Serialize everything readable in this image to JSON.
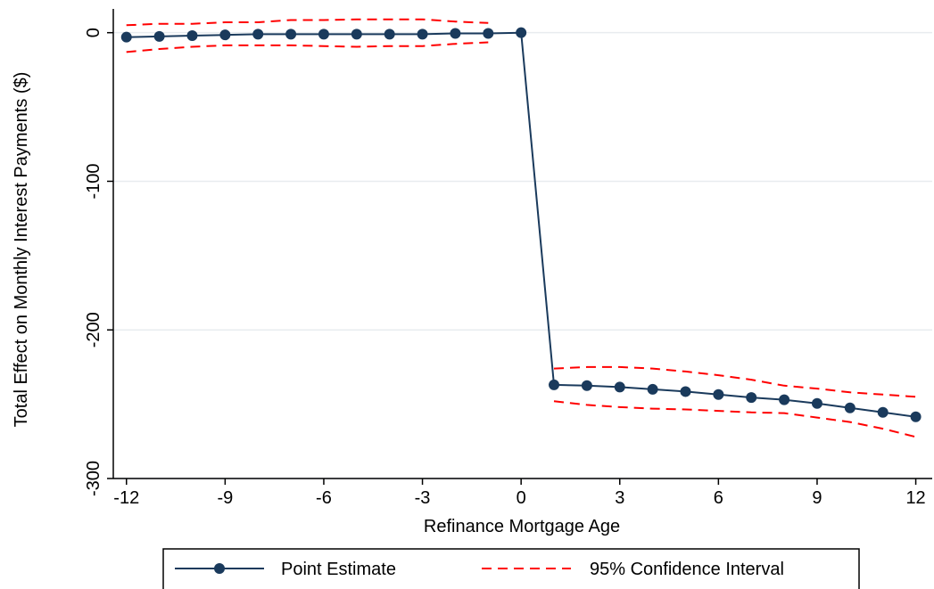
{
  "chart_data": {
    "type": "line",
    "xlabel": "Refinance Mortgage Age",
    "ylabel": "Total Effect on Monthly Interest Payments ($)",
    "xlim": [
      -12.4,
      12.5
    ],
    "ylim": [
      -300,
      16
    ],
    "x_ticks": [
      -12,
      -9,
      -6,
      -3,
      0,
      3,
      6,
      9,
      12
    ],
    "y_ticks": [
      0,
      -100,
      -200,
      -300
    ],
    "grid": "horizontal",
    "legend_position": "bottom",
    "series": [
      {
        "name": "Point Estimate",
        "style": "solid-markers",
        "color": "#1a3a5c",
        "segments": [
          {
            "x": [
              -12,
              -11,
              -10,
              -9,
              -8,
              -7,
              -6,
              -5,
              -4,
              -3,
              -2,
              -1,
              0,
              1,
              2,
              3,
              4,
              5,
              6,
              7,
              8,
              9,
              10,
              11,
              12
            ],
            "y": [
              -3,
              -2.5,
              -2,
              -1.5,
              -1,
              -1,
              -1,
              -1,
              -1,
              -1,
              -0.5,
              -0.5,
              0,
              -237,
              -237.5,
              -238.5,
              -240,
              -241.5,
              -243.5,
              -245.5,
              -247,
              -249.5,
              -252.5,
              -255.5,
              -258.5
            ]
          }
        ]
      },
      {
        "name": "95% Confidence Interval",
        "style": "dashed",
        "color": "#ff0000",
        "segments": [
          {
            "x": [
              -12,
              -11,
              -10,
              -9,
              -8,
              -7,
              -6,
              -5,
              -4,
              -3,
              -2,
              -1
            ],
            "y": [
              5,
              6,
              6,
              7,
              7,
              8.5,
              8.5,
              9,
              9,
              9,
              7.5,
              6.5
            ]
          },
          {
            "x": [
              -12,
              -11,
              -10,
              -9,
              -8,
              -7,
              -6,
              -5,
              -4,
              -3,
              -2,
              -1
            ],
            "y": [
              -13,
              -11,
              -9.5,
              -8.5,
              -8.5,
              -8.5,
              -9,
              -9.5,
              -9,
              -9,
              -7.5,
              -6.5
            ]
          },
          {
            "x": [
              1,
              2,
              3,
              4,
              5,
              6,
              7,
              8,
              9,
              10,
              11,
              12
            ],
            "y": [
              -226,
              -225,
              -225,
              -226,
              -228,
              -230.5,
              -233.5,
              -237.5,
              -239.5,
              -242,
              -243.5,
              -245
            ]
          },
          {
            "x": [
              1,
              2,
              3,
              4,
              5,
              6,
              7,
              8,
              9,
              10,
              11,
              12
            ],
            "y": [
              -248,
              -250.5,
              -252,
              -253,
              -253.5,
              -254.5,
              -255.5,
              -256,
              -259,
              -262,
              -266.5,
              -272
            ]
          }
        ]
      }
    ]
  }
}
